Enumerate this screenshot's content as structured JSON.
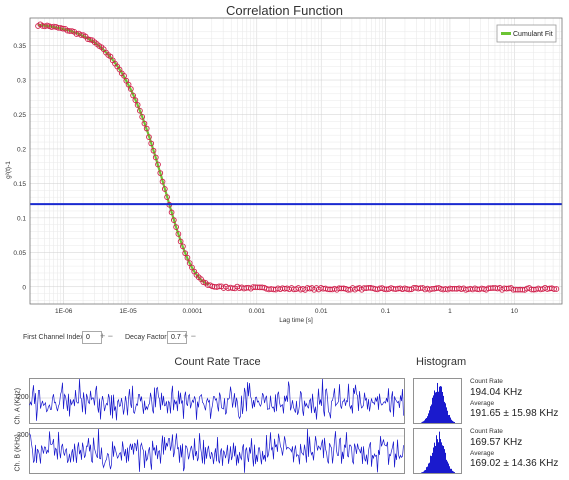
{
  "correlation": {
    "title": "Correlation Function",
    "ylabel": "g²(t)-1",
    "xlabel": "Lag time [s]",
    "legend": "Cumulant Fit",
    "colors": {
      "measured": "#d0204c",
      "fit": "#6cc433",
      "hline": "#1a2ad0"
    }
  },
  "controls": {
    "first_channel_label": "First Channel Index",
    "first_channel_value": "0",
    "decay_label": "Decay Factor",
    "decay_value": "0.7"
  },
  "count_rate": {
    "title": "Count Rate Trace",
    "ch_a_label": "Ch. A (KHz)",
    "ch_b_label": "Ch. B (KHz)",
    "tick_label": "200",
    "trace_color": "#1a1acd"
  },
  "histogram": {
    "title": "Histogram",
    "a": {
      "label": "Count Rate",
      "value": "194.04 KHz",
      "avg_label": "Average",
      "avg": "191.65 ± 15.98 KHz"
    },
    "b": {
      "label": "Count Rate",
      "value": "169.57 KHz",
      "avg_label": "Average",
      "avg": "169.02 ± 14.36 KHz"
    }
  },
  "chart_data": [
    {
      "type": "scatter",
      "title": "Correlation Function",
      "xlabel": "Lag time [s]",
      "ylabel": "g²(t)-1",
      "x_scale": "log",
      "xlim": [
        3e-07,
        55
      ],
      "ylim": [
        -0.025,
        0.39
      ],
      "xticks": [
        "1E-06",
        "1E-05",
        "0.0001",
        "0.001",
        "0.01",
        "0.1",
        "1",
        "10"
      ],
      "yticks": [
        "0",
        "0.05",
        "0.1",
        "0.15",
        "0.2",
        "0.25",
        "0.3",
        "0.35"
      ],
      "grid": true,
      "legend_position": "top-right",
      "series": [
        {
          "name": "Cumulant Fit",
          "model": "cumulant",
          "amplitude": 0.384,
          "decay_time": 7.5e-05,
          "x_range": [
            4e-07,
            0.00018
          ]
        }
      ],
      "measured_points": {
        "amplitude": 0.384,
        "decay_time": 7.5e-05,
        "baseline": -0.003,
        "x_range": [
          4e-07,
          45
        ],
        "count": 230
      },
      "horizontal_line": 0.12
    },
    {
      "type": "line",
      "title": "Count Rate Trace",
      "series": [
        {
          "label": "Ch. A (KHz)",
          "mean": 191.65,
          "std": 15.98
        },
        {
          "label": "Ch. B (KHz)",
          "mean": 169.02,
          "std": 14.36
        }
      ]
    }
  ]
}
